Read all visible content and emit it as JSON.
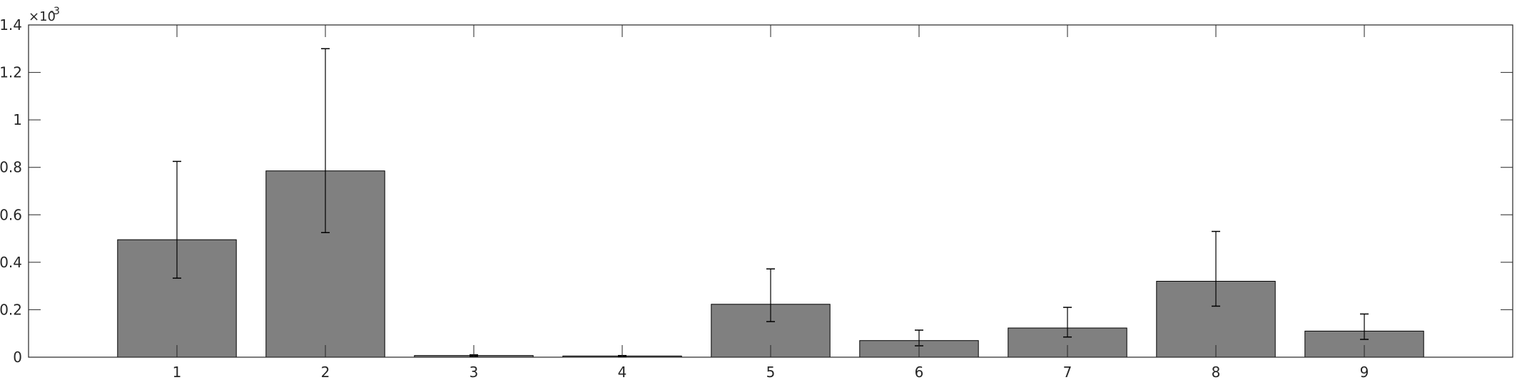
{
  "chart_data": {
    "type": "bar",
    "title": "",
    "xlabel": "",
    "ylabel": "",
    "categories": [
      "1",
      "2",
      "3",
      "4",
      "5",
      "6",
      "7",
      "8",
      "9"
    ],
    "values": [
      0.000495,
      0.000785,
      7e-06,
      5e-06,
      0.000223,
      7e-05,
      0.000123,
      0.00032,
      0.00011
    ],
    "error_low": [
      0.000333,
      0.000525,
      4e-06,
      3e-06,
      0.00015,
      4.8e-05,
      8.5e-05,
      0.000215,
      7.5e-05
    ],
    "error_high": [
      0.000825,
      0.0013,
      1e-05,
      7e-06,
      0.000372,
      0.000114,
      0.00021,
      0.00053,
      0.000182
    ],
    "ylim": [
      0,
      0.0014
    ],
    "yticks": [
      0,
      0.0002,
      0.0004,
      0.0006,
      0.0008,
      0.001,
      0.0012,
      0.0014
    ],
    "ytick_labels": [
      "0",
      "0.2",
      "0.4",
      "0.6",
      "0.8",
      "1",
      "1.2",
      "1.4"
    ],
    "y_exponent_label": "×10",
    "y_exponent": "-3",
    "xlim": [
      0,
      10
    ],
    "grid": false,
    "bar_color": "#808080",
    "edge_color": "#000000",
    "axis_color": "#262626"
  }
}
